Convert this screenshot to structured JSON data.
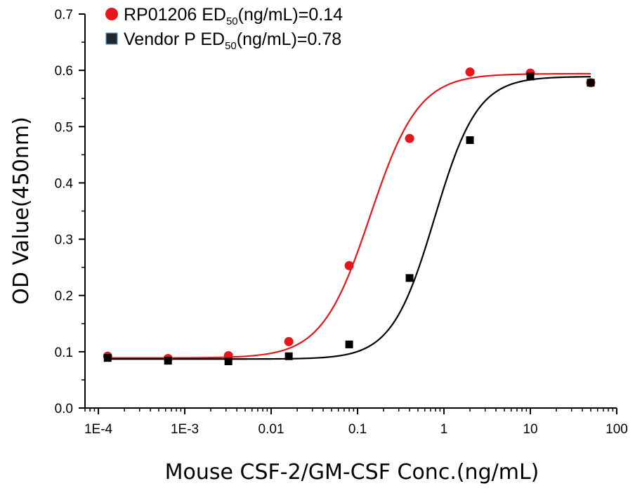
{
  "chart_data": {
    "type": "scatter",
    "xlabel": "Mouse CSF-2/GM-CSF Conc.(ng/mL)",
    "ylabel": "OD Value(450nm)",
    "x_scale": "log",
    "xlim": [
      7e-05,
      100
    ],
    "ylim": [
      0,
      0.7
    ],
    "x_ticks": [
      {
        "value": 0.0001,
        "label": "1E-4"
      },
      {
        "value": 0.001,
        "label": "1E-3"
      },
      {
        "value": 0.01,
        "label": "0.01"
      },
      {
        "value": 0.1,
        "label": "0.1"
      },
      {
        "value": 1,
        "label": "1"
      },
      {
        "value": 10,
        "label": "10"
      },
      {
        "value": 100,
        "label": "100"
      }
    ],
    "y_ticks": [
      {
        "value": 0.0,
        "label": "0.0"
      },
      {
        "value": 0.1,
        "label": "0.1"
      },
      {
        "value": 0.2,
        "label": "0.2"
      },
      {
        "value": 0.3,
        "label": "0.3"
      },
      {
        "value": 0.4,
        "label": "0.4"
      },
      {
        "value": 0.5,
        "label": "0.5"
      },
      {
        "value": 0.6,
        "label": "0.6"
      },
      {
        "value": 0.7,
        "label": "0.7"
      }
    ],
    "grid": false,
    "legend_position": "top-left",
    "series": [
      {
        "name": "RP01206",
        "legend_main": "RP01206 ED",
        "legend_sub": "50",
        "legend_tail": "(ng/mL)=0.14",
        "marker": "circle",
        "color": "#e8151b",
        "x": [
          0.000128,
          0.00064,
          0.0032,
          0.016,
          0.08,
          0.4,
          2,
          10,
          50
        ],
        "y": [
          0.092,
          0.088,
          0.093,
          0.118,
          0.253,
          0.479,
          0.597,
          0.595,
          0.578
        ],
        "fit": {
          "bottom": 0.089,
          "top": 0.594,
          "ec50": 0.14,
          "hill": 1.55
        }
      },
      {
        "name": "Vendor P",
        "legend_main": "Vendor P ED",
        "legend_sub": "50",
        "legend_tail": "(ng/mL)=0.78",
        "marker": "square",
        "color": "#000000",
        "x": [
          0.000128,
          0.00064,
          0.0032,
          0.016,
          0.08,
          0.4,
          2,
          10,
          50
        ],
        "y": [
          0.089,
          0.084,
          0.083,
          0.092,
          0.113,
          0.231,
          0.476,
          0.589,
          0.578
        ],
        "fit": {
          "bottom": 0.087,
          "top": 0.589,
          "ec50": 0.78,
          "hill": 1.75
        }
      }
    ]
  }
}
